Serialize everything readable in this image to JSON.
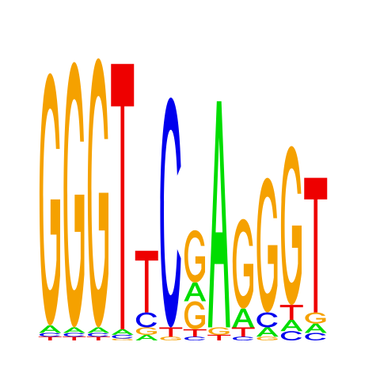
{
  "chart_data": {
    "type": "sequence-logo",
    "alphabet": [
      "A",
      "C",
      "G",
      "T"
    ],
    "colors": {
      "A": "#00dd00",
      "C": "#0000ee",
      "G": "#f5a100",
      "T": "#ee0000"
    },
    "positions": [
      {
        "position": 1,
        "stack": [
          [
            "T",
            0.02
          ],
          [
            "C",
            0.02
          ],
          [
            "A",
            0.04
          ],
          [
            "G",
            1.35
          ]
        ]
      },
      {
        "position": 2,
        "stack": [
          [
            "T",
            0.02
          ],
          [
            "C",
            0.02
          ],
          [
            "A",
            0.03
          ],
          [
            "G",
            1.42
          ]
        ]
      },
      {
        "position": 3,
        "stack": [
          [
            "T",
            0.02
          ],
          [
            "C",
            0.02
          ],
          [
            "A",
            0.03
          ],
          [
            "G",
            1.44
          ]
        ]
      },
      {
        "position": 4,
        "stack": [
          [
            "G",
            0.01
          ],
          [
            "C",
            0.02
          ],
          [
            "A",
            0.03
          ],
          [
            "T",
            1.42
          ]
        ]
      },
      {
        "position": 5,
        "stack": [
          [
            "A",
            0.03
          ],
          [
            "G",
            0.04
          ],
          [
            "C",
            0.08
          ],
          [
            "T",
            0.33
          ]
        ]
      },
      {
        "position": 6,
        "stack": [
          [
            "G",
            0.02
          ],
          [
            "T",
            0.05
          ],
          [
            "C",
            1.23
          ]
        ]
      },
      {
        "position": 7,
        "stack": [
          [
            "C",
            0.02
          ],
          [
            "T",
            0.04
          ],
          [
            "G",
            0.15
          ],
          [
            "A",
            0.1
          ],
          [
            "G",
            0.28
          ]
        ]
      },
      {
        "position": 8,
        "stack": [
          [
            "T",
            0.03
          ],
          [
            "G",
            0.04
          ],
          [
            "A",
            1.21
          ]
        ]
      },
      {
        "position": 9,
        "stack": [
          [
            "C",
            0.02
          ],
          [
            "T",
            0.05
          ],
          [
            "A",
            0.1
          ],
          [
            "G",
            0.48
          ]
        ]
      },
      {
        "position": 10,
        "stack": [
          [
            "G",
            0.02
          ],
          [
            "A",
            0.05
          ],
          [
            "C",
            0.08
          ],
          [
            "G",
            0.72
          ]
        ]
      },
      {
        "position": 11,
        "stack": [
          [
            "C",
            0.05
          ],
          [
            "A",
            0.06
          ],
          [
            "T",
            0.08
          ],
          [
            "G",
            0.85
          ]
        ]
      },
      {
        "position": 12,
        "stack": [
          [
            "C",
            0.04
          ],
          [
            "A",
            0.05
          ],
          [
            "G",
            0.06
          ],
          [
            "T",
            0.72
          ]
        ]
      }
    ]
  }
}
